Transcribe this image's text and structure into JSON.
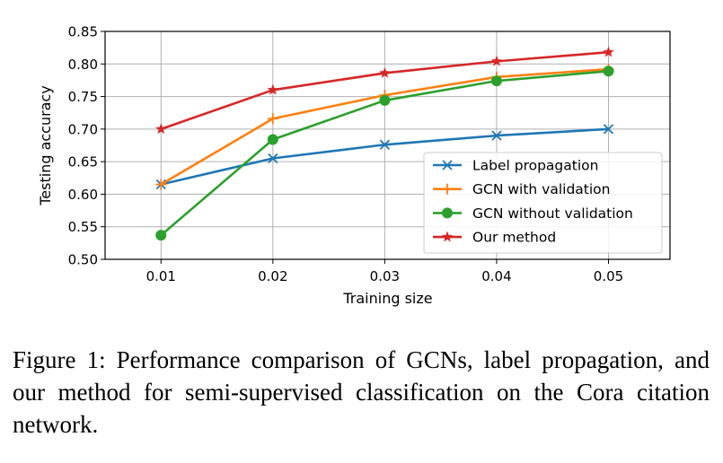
{
  "chart_data": {
    "type": "line",
    "title": "",
    "xlabel": "Training size",
    "ylabel": "Testing accuracy",
    "x": [
      0.01,
      0.02,
      0.03,
      0.04,
      0.05
    ],
    "x_tick_labels": [
      "0.01",
      "0.02",
      "0.03",
      "0.04",
      "0.05"
    ],
    "xlim": [
      0.005,
      0.0555
    ],
    "ylim": [
      0.5,
      0.85
    ],
    "y_ticks": [
      0.5,
      0.55,
      0.6,
      0.65,
      0.7,
      0.75,
      0.8,
      0.85
    ],
    "y_tick_labels": [
      "0.50",
      "0.55",
      "0.60",
      "0.65",
      "0.70",
      "0.75",
      "0.80",
      "0.85"
    ],
    "grid": true,
    "legend_position": "lower-right",
    "series": [
      {
        "name": "Label propagation",
        "color": "#1f77b4",
        "marker": "x",
        "values": [
          0.615,
          0.655,
          0.676,
          0.69,
          0.7
        ]
      },
      {
        "name": "GCN with validation",
        "color": "#ff7f0e",
        "marker": "+",
        "values": [
          0.615,
          0.716,
          0.752,
          0.78,
          0.792
        ]
      },
      {
        "name": "GCN without validation",
        "color": "#2ca02c",
        "marker": "o",
        "values": [
          0.537,
          0.684,
          0.744,
          0.774,
          0.789
        ]
      },
      {
        "name": "Our method",
        "color": "#d62728",
        "marker": "*",
        "values": [
          0.7,
          0.76,
          0.786,
          0.804,
          0.818
        ]
      }
    ]
  },
  "caption": "Figure 1: Performance comparison of GCNs, label propagation, and our method for semi-supervised classification on the Cora citation network."
}
